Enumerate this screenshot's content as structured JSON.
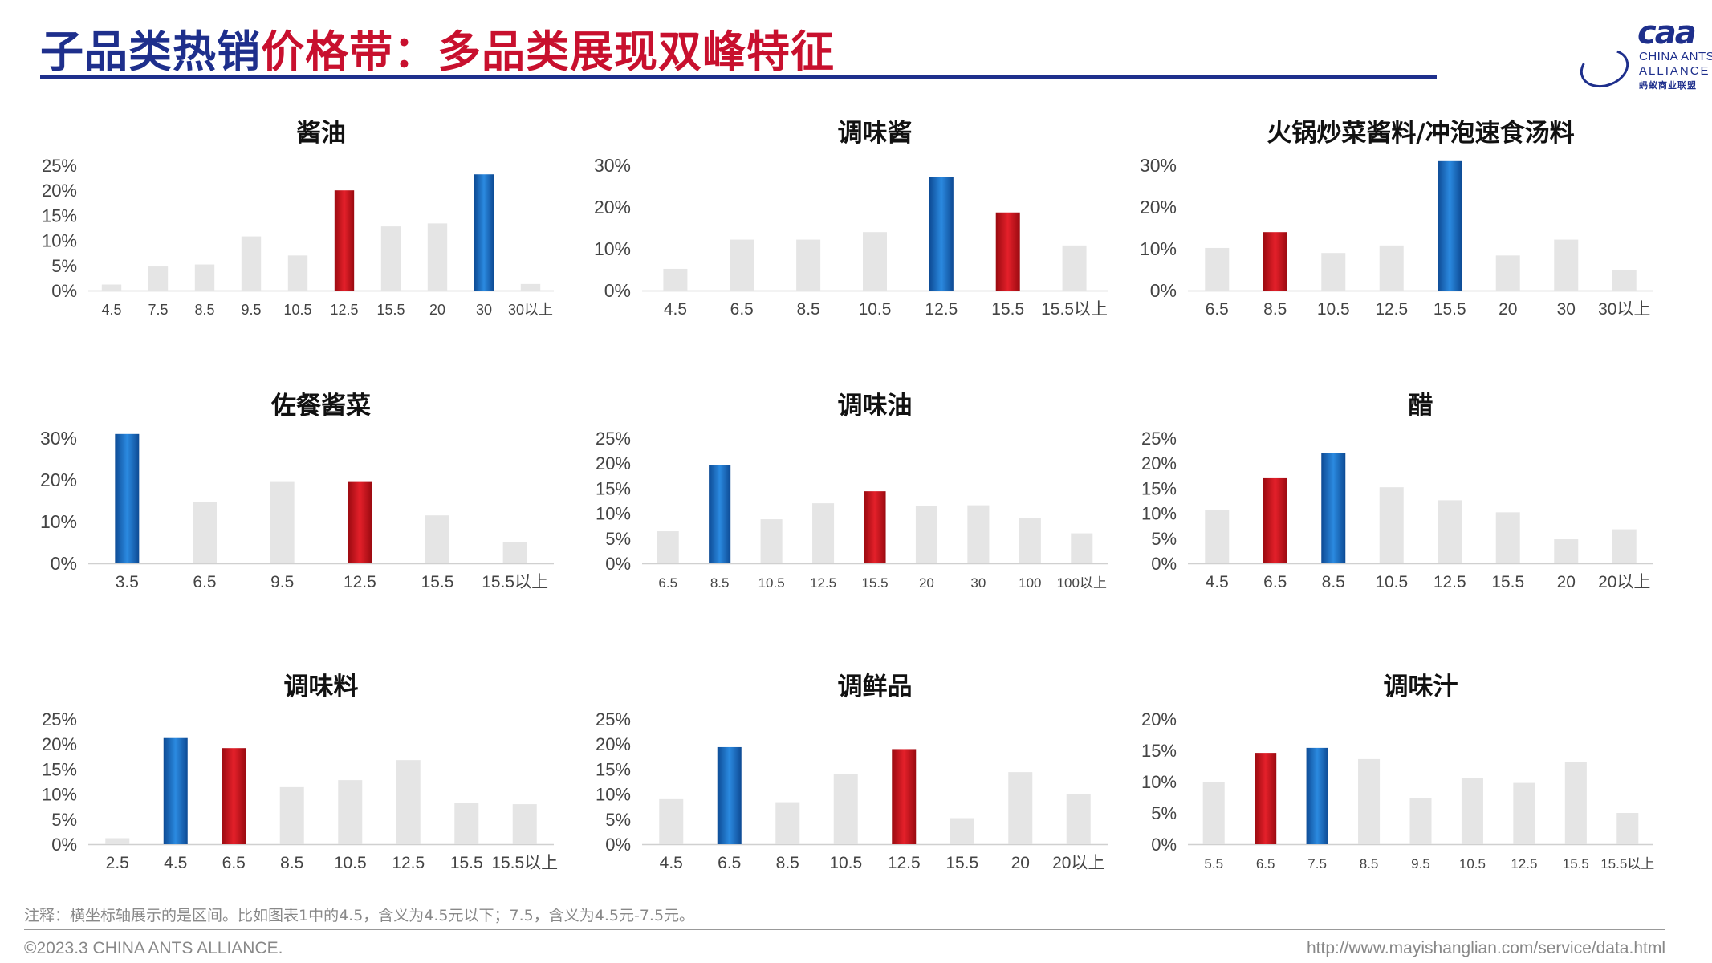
{
  "header": {
    "title_part1": "子品类热销",
    "title_part2": "价格带：多品类展现双峰特征",
    "title_color_1": "#1e2f8c",
    "title_color_2": "#c8102e"
  },
  "logo": {
    "mark": "caa",
    "line1": "CHINA ANTS",
    "line2": "ALLIANCE",
    "cn": "蚂蚁商业联盟"
  },
  "colors": {
    "highlight_blue": "#1a6fc0",
    "highlight_red": "#d0101a",
    "bar_gray": "#e5e5e5"
  },
  "chart_data": [
    {
      "title": "酱油",
      "type": "bar",
      "categories": [
        "4.5",
        "7.5",
        "8.5",
        "9.5",
        "10.5",
        "12.5",
        "15.5",
        "20",
        "30",
        "30以上"
      ],
      "values": [
        1.2,
        4.8,
        5.2,
        10.8,
        7.0,
        20.0,
        12.8,
        13.4,
        23.2,
        1.3
      ],
      "highlight": [
        "",
        "",
        "",
        "",
        "",
        "red",
        "",
        "",
        "blue",
        ""
      ],
      "ylim": [
        0,
        25
      ],
      "yticks": [
        "0%",
        "5%",
        "10%",
        "15%",
        "20%",
        "25%"
      ]
    },
    {
      "title": "调味酱",
      "type": "bar",
      "categories": [
        "4.5",
        "6.5",
        "8.5",
        "10.5",
        "12.5",
        "15.5",
        "15.5以上"
      ],
      "values": [
        5.2,
        12.2,
        12.2,
        14.0,
        27.2,
        18.7,
        10.8
      ],
      "highlight": [
        "",
        "",
        "",
        "",
        "blue",
        "red",
        ""
      ],
      "ylim": [
        0,
        30
      ],
      "yticks": [
        "0%",
        "10%",
        "20%",
        "30%"
      ]
    },
    {
      "title": "火锅炒菜酱料/冲泡速食汤料",
      "type": "bar",
      "categories": [
        "6.5",
        "8.5",
        "10.5",
        "12.5",
        "15.5",
        "20",
        "30",
        "30以上"
      ],
      "values": [
        10.2,
        14.0,
        9.0,
        10.8,
        31.0,
        8.4,
        12.2,
        5.0
      ],
      "highlight": [
        "",
        "red",
        "",
        "",
        "blue",
        "",
        "",
        ""
      ],
      "ylim": [
        0,
        30
      ],
      "yticks": [
        "0%",
        "10%",
        "20%",
        "30%"
      ]
    },
    {
      "title": "佐餐酱菜",
      "type": "bar",
      "categories": [
        "3.5",
        "6.5",
        "9.5",
        "12.5",
        "15.5",
        "15.5以上"
      ],
      "values": [
        31.0,
        14.8,
        19.5,
        19.5,
        11.5,
        5.0
      ],
      "highlight": [
        "blue",
        "",
        "",
        "red",
        "",
        ""
      ],
      "ylim": [
        0,
        30
      ],
      "yticks": [
        "0%",
        "10%",
        "20%",
        "30%"
      ]
    },
    {
      "title": "调味油",
      "type": "bar",
      "categories": [
        "6.5",
        "8.5",
        "10.5",
        "12.5",
        "15.5",
        "20",
        "30",
        "100",
        "100以上"
      ],
      "values": [
        6.4,
        19.6,
        8.8,
        12.0,
        14.4,
        11.4,
        11.6,
        9.0,
        6.0
      ],
      "highlight": [
        "",
        "blue",
        "",
        "",
        "red",
        "",
        "",
        "",
        ""
      ],
      "ylim": [
        0,
        25
      ],
      "yticks": [
        "0%",
        "5%",
        "10%",
        "15%",
        "20%",
        "25%"
      ]
    },
    {
      "title": "醋",
      "type": "bar",
      "categories": [
        "4.5",
        "6.5",
        "8.5",
        "10.5",
        "12.5",
        "15.5",
        "20",
        "20以上"
      ],
      "values": [
        10.6,
        17.0,
        22.0,
        15.2,
        12.6,
        10.2,
        4.8,
        6.8
      ],
      "highlight": [
        "",
        "red",
        "blue",
        "",
        "",
        "",
        "",
        ""
      ],
      "ylim": [
        0,
        25
      ],
      "yticks": [
        "0%",
        "5%",
        "10%",
        "15%",
        "20%",
        "25%"
      ]
    },
    {
      "title": "调味料",
      "type": "bar",
      "categories": [
        "2.5",
        "4.5",
        "6.5",
        "8.5",
        "10.5",
        "12.5",
        "15.5",
        "15.5以上"
      ],
      "values": [
        1.2,
        21.2,
        19.2,
        11.4,
        12.8,
        16.8,
        8.2,
        8.0
      ],
      "highlight": [
        "",
        "blue",
        "red",
        "",
        "",
        "",
        "",
        ""
      ],
      "ylim": [
        0,
        25
      ],
      "yticks": [
        "0%",
        "5%",
        "10%",
        "15%",
        "20%",
        "25%"
      ]
    },
    {
      "title": "调鲜品",
      "type": "bar",
      "categories": [
        "4.5",
        "6.5",
        "8.5",
        "10.5",
        "12.5",
        "15.5",
        "20",
        "20以上"
      ],
      "values": [
        9.0,
        19.4,
        8.4,
        14.0,
        19.0,
        5.2,
        14.4,
        10.0
      ],
      "highlight": [
        "",
        "blue",
        "",
        "",
        "red",
        "",
        "",
        ""
      ],
      "ylim": [
        0,
        25
      ],
      "yticks": [
        "0%",
        "5%",
        "10%",
        "15%",
        "20%",
        "25%"
      ]
    },
    {
      "title": "调味汁",
      "type": "bar",
      "categories": [
        "5.5",
        "6.5",
        "7.5",
        "8.5",
        "9.5",
        "10.5",
        "12.5",
        "15.5",
        "15.5以上"
      ],
      "values": [
        10.0,
        14.6,
        15.4,
        13.6,
        7.4,
        10.6,
        9.8,
        13.2,
        5.0
      ],
      "highlight": [
        "",
        "red",
        "blue",
        "",
        "",
        "",
        "",
        "",
        ""
      ],
      "ylim": [
        0,
        20
      ],
      "yticks": [
        "0%",
        "5%",
        "10%",
        "15%",
        "20%"
      ]
    }
  ],
  "footnote": "注释：横坐标轴展示的是区间。比如图表1中的4.5，含义为4.5元以下；7.5，含义为4.5元-7.5元。",
  "copyright": "©2023.3 CHINA ANTS ALLIANCE.",
  "url": "http://www.mayishanglian.com/service/data.html"
}
